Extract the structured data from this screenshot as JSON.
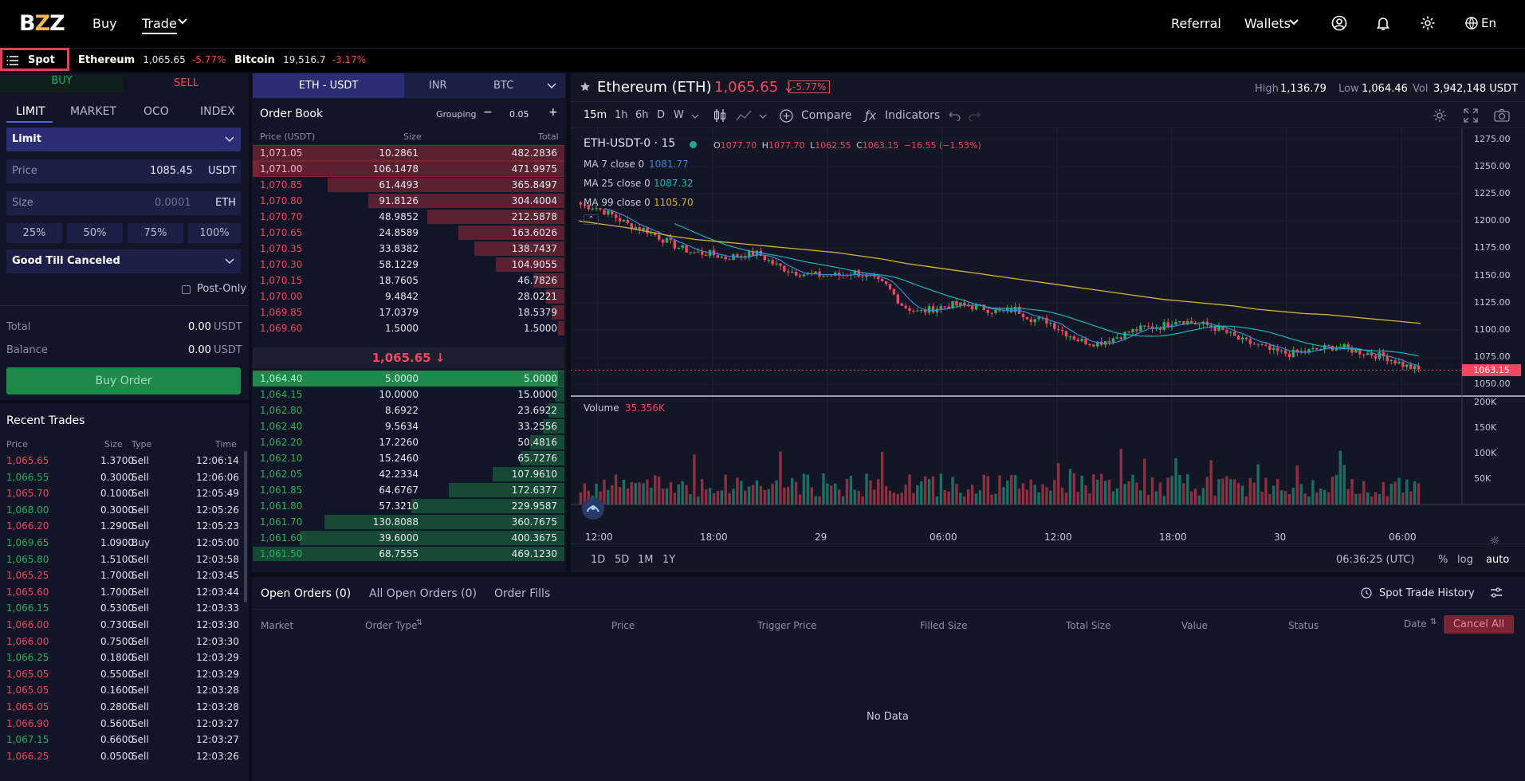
{
  "topnav": {
    "buy": "Buy",
    "trade": "Trade",
    "referral": "Referral",
    "wallets": "Wallets",
    "lang": "En"
  },
  "ticker": {
    "spot": "Spot",
    "items": [
      {
        "name": "Ethereum",
        "price": "1,065.65",
        "change": "-5.77%"
      },
      {
        "name": "Bitcoin",
        "price": "19,516.7",
        "change": "-3.17%"
      }
    ]
  },
  "order_form": {
    "buy": "BUY",
    "sell": "SELL",
    "types": [
      "LIMIT",
      "MARKET",
      "OCO",
      "INDEX"
    ],
    "order_select": "Limit",
    "price_label": "Price",
    "price_value": "1085.45",
    "price_unit": "USDT",
    "size_label": "Size",
    "size_placeholder": "0.0001",
    "size_unit": "ETH",
    "pcts": [
      "25%",
      "50%",
      "75%",
      "100%"
    ],
    "tif": "Good Till Canceled",
    "post_only": "Post-Only",
    "total_label": "Total",
    "total_value": "0.00",
    "total_unit": "USDT",
    "balance_label": "Balance",
    "balance_value": "0.00",
    "balance_unit": "USDT",
    "submit": "Buy Order"
  },
  "recent_trades": {
    "title": "Recent Trades",
    "headers": [
      "Price",
      "Size",
      "Type",
      "Time"
    ],
    "rows": [
      {
        "price": "1,065.65",
        "size": "1.3700",
        "type": "Sell",
        "time": "12:06:14",
        "side": "sell"
      },
      {
        "price": "1,066.55",
        "size": "0.3000",
        "type": "Sell",
        "time": "12:06:06",
        "side": "buy"
      },
      {
        "price": "1,065.70",
        "size": "0.1000",
        "type": "Sell",
        "time": "12:05:49",
        "side": "sell"
      },
      {
        "price": "1,068.00",
        "size": "0.3000",
        "type": "Sell",
        "time": "12:05:26",
        "side": "buy"
      },
      {
        "price": "1,066.20",
        "size": "1.2900",
        "type": "Sell",
        "time": "12:05:23",
        "side": "sell"
      },
      {
        "price": "1,069.65",
        "size": "1.0900",
        "type": "Buy",
        "time": "12:05:00",
        "side": "buy"
      },
      {
        "price": "1,065.80",
        "size": "1.5100",
        "type": "Sell",
        "time": "12:03:58",
        "side": "buy"
      },
      {
        "price": "1,065.25",
        "size": "1.7000",
        "type": "Sell",
        "time": "12:03:45",
        "side": "sell"
      },
      {
        "price": "1,065.60",
        "size": "1.7000",
        "type": "Sell",
        "time": "12:03:44",
        "side": "sell"
      },
      {
        "price": "1,066.15",
        "size": "0.5300",
        "type": "Sell",
        "time": "12:03:33",
        "side": "buy"
      },
      {
        "price": "1,066.00",
        "size": "0.7300",
        "type": "Sell",
        "time": "12:03:30",
        "side": "sell"
      },
      {
        "price": "1,066.00",
        "size": "0.7500",
        "type": "Sell",
        "time": "12:03:30",
        "side": "sell"
      },
      {
        "price": "1,066.25",
        "size": "0.1800",
        "type": "Sell",
        "time": "12:03:29",
        "side": "buy"
      },
      {
        "price": "1,065.05",
        "size": "0.5500",
        "type": "Sell",
        "time": "12:03:29",
        "side": "sell"
      },
      {
        "price": "1,065.05",
        "size": "0.1600",
        "type": "Sell",
        "time": "12:03:28",
        "side": "sell"
      },
      {
        "price": "1,065.05",
        "size": "0.2800",
        "type": "Sell",
        "time": "12:03:28",
        "side": "sell"
      },
      {
        "price": "1,066.90",
        "size": "0.5600",
        "type": "Sell",
        "time": "12:03:27",
        "side": "sell"
      },
      {
        "price": "1,067.15",
        "size": "0.6600",
        "type": "Sell",
        "time": "12:03:27",
        "side": "buy"
      },
      {
        "price": "1,066.25",
        "size": "0.0500",
        "type": "Sell",
        "time": "12:03:26",
        "side": "sell"
      }
    ]
  },
  "orderbook": {
    "pairs": [
      "ETH - USDT",
      "INR",
      "BTC"
    ],
    "title": "Order Book",
    "grouping_label": "Grouping",
    "grouping_value": "0.05",
    "headers": [
      "Price (USDT)",
      "Size",
      "Total"
    ],
    "asks": [
      {
        "price": "1,071.05",
        "size": "10.2861",
        "total": "482.2836",
        "depth": 1.0
      },
      {
        "price": "1,071.00",
        "size": "106.1478",
        "total": "471.9975",
        "depth": 0.98
      },
      {
        "price": "1,070.85",
        "size": "61.4493",
        "total": "365.8497",
        "depth": 0.76
      },
      {
        "price": "1,070.80",
        "size": "91.8126",
        "total": "304.4004",
        "depth": 0.63
      },
      {
        "price": "1,070.70",
        "size": "48.9852",
        "total": "212.5878",
        "depth": 0.44
      },
      {
        "price": "1,070.65",
        "size": "24.8589",
        "total": "163.6026",
        "depth": 0.34
      },
      {
        "price": "1,070.35",
        "size": "33.8382",
        "total": "138.7437",
        "depth": 0.29
      },
      {
        "price": "1,070.30",
        "size": "58.1229",
        "total": "104.9055",
        "depth": 0.22
      },
      {
        "price": "1,070.15",
        "size": "18.7605",
        "total": "46.7826",
        "depth": 0.1
      },
      {
        "price": "1,070.00",
        "size": "9.4842",
        "total": "28.0221",
        "depth": 0.06
      },
      {
        "price": "1,069.85",
        "size": "17.0379",
        "total": "18.5379",
        "depth": 0.04
      },
      {
        "price": "1,069.60",
        "size": "1.5000",
        "total": "1.5000",
        "depth": 0.01
      }
    ],
    "mid": "1,065.65 ↓",
    "bids": [
      {
        "price": "1,064.40",
        "size": "5.0000",
        "total": "5.0000",
        "depth": 0.01
      },
      {
        "price": "1,064.15",
        "size": "10.0000",
        "total": "15.0000",
        "depth": 0.03
      },
      {
        "price": "1,062.80",
        "size": "8.6922",
        "total": "23.6922",
        "depth": 0.05
      },
      {
        "price": "1,062.40",
        "size": "9.5634",
        "total": "33.2556",
        "depth": 0.07
      },
      {
        "price": "1,062.20",
        "size": "17.2260",
        "total": "50.4816",
        "depth": 0.11
      },
      {
        "price": "1,062.10",
        "size": "15.2460",
        "total": "65.7276",
        "depth": 0.14
      },
      {
        "price": "1,062.05",
        "size": "42.2334",
        "total": "107.9610",
        "depth": 0.23
      },
      {
        "price": "1,061.85",
        "size": "64.6767",
        "total": "172.6377",
        "depth": 0.37
      },
      {
        "price": "1,061.80",
        "size": "57.3210",
        "total": "229.9587",
        "depth": 0.49
      },
      {
        "price": "1,061.70",
        "size": "130.8088",
        "total": "360.7675",
        "depth": 0.77
      },
      {
        "price": "1,061.60",
        "size": "39.6000",
        "total": "400.3675",
        "depth": 0.85
      },
      {
        "price": "1,061.50",
        "size": "68.7555",
        "total": "469.1230",
        "depth": 1.0
      }
    ]
  },
  "market_header": {
    "name": "Ethereum (ETH)",
    "price": "1,065.65 ↓",
    "change": "-5.77%",
    "high_label": "High",
    "high": "1,136.79",
    "low_label": "Low",
    "low": "1,064.46",
    "vol_label": "Vol",
    "vol": "3,942,148 USDT"
  },
  "chart_toolbar": {
    "intervals": [
      "15m",
      "1h",
      "6h",
      "D",
      "W"
    ],
    "compare": "Compare",
    "indicators": "Indicators"
  },
  "chart_legend": {
    "symbol": "ETH-USDT-0 · 15",
    "o_label": "O",
    "o": "1077.70",
    "h_label": "H",
    "h": "1077.70",
    "l_label": "L",
    "l": "1062.55",
    "c_label": "C",
    "c": "1063.15",
    "chg": "−16.55 (−1.53%)",
    "ma7_label": "MA 7 close 0",
    "ma7": "1081.77",
    "ma25_label": "MA 25 close 0",
    "ma25": "1087.32",
    "ma99_label": "MA 99 close 0",
    "ma99": "1105.70",
    "volume_label": "Volume",
    "volume": "35.356K"
  },
  "chart_bottom": {
    "ranges": [
      "1D",
      "5D",
      "1M",
      "1Y"
    ],
    "clock": "06:36:25 (UTC)",
    "opts": [
      "%",
      "log",
      "auto"
    ]
  },
  "colors": {
    "up": "#25b35a",
    "down": "#f0485e",
    "ma7": "#3d86d8",
    "ma25": "#1fb3bf",
    "ma99": "#d8b23b",
    "accent": "#2b2e75"
  },
  "chart_data": {
    "type": "candlestick",
    "x_ticks": [
      "12:00",
      "18:00",
      "29",
      "06:00",
      "12:00",
      "18:00",
      "30",
      "06:00"
    ],
    "y_ticks": [
      "1275.00",
      "1250.00",
      "1225.00",
      "1200.00",
      "1175.00",
      "1150.00",
      "1125.00",
      "1100.00",
      "1075.00",
      "1050.00"
    ],
    "ylim": [
      1040,
      1285
    ],
    "volume_ticks": [
      "200K",
      "150K",
      "100K",
      "50K"
    ],
    "volume_ylim": [
      0,
      210000
    ],
    "last_price": "1063.15",
    "close_path": [
      1215,
      1212,
      1205,
      1196,
      1192,
      1184,
      1176,
      1171,
      1170,
      1166,
      1169,
      1170,
      1160,
      1154,
      1151,
      1150,
      1150,
      1153,
      1147,
      1140,
      1122,
      1116,
      1120,
      1123,
      1122,
      1120,
      1116,
      1119,
      1110,
      1108,
      1098,
      1090,
      1088,
      1092,
      1098,
      1102,
      1103,
      1110,
      1106,
      1104,
      1098,
      1090,
      1086,
      1080,
      1078,
      1080,
      1083,
      1085,
      1081,
      1078,
      1075,
      1068,
      1063
    ],
    "ma99_path": [
      1200,
      1197,
      1194,
      1190,
      1186,
      1183,
      1181,
      1179,
      1177,
      1175,
      1173,
      1171,
      1168,
      1165,
      1161,
      1158,
      1155,
      1152,
      1149,
      1146,
      1143,
      1140,
      1137,
      1134,
      1131,
      1128,
      1126,
      1124,
      1122,
      1119,
      1117,
      1115,
      1114,
      1112,
      1110,
      1108,
      1106
    ]
  },
  "open_orders": {
    "tabs": [
      "Open Orders (0)",
      "All Open Orders (0)",
      "Order Fills"
    ],
    "history": "Spot Trade History",
    "headers": [
      "Market",
      "Order Type",
      "Price",
      "Trigger Price",
      "Filled Size",
      "Total Size",
      "Value",
      "Status",
      "Date"
    ],
    "cancel_all": "Cancel All",
    "empty": "No Data"
  }
}
